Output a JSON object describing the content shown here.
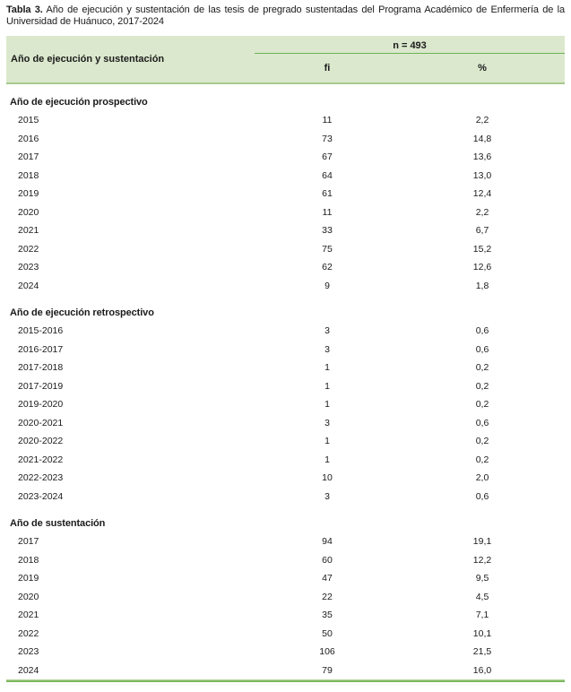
{
  "caption": {
    "label": "Tabla 3.",
    "text": " Año de ejecución y sustentación de las tesis de pregrado sustentadas del Programa Académico de Enfermería de la Universidad de Huánuco, 2017-2024"
  },
  "table": {
    "header": {
      "row_dimension": "Año de ejecución y sustentación",
      "n_label": "n = 493",
      "fi_label": "fi",
      "pct_label": "%"
    },
    "sections": [
      {
        "name": "Año de ejecución prospectivo",
        "rows": [
          [
            "2015",
            "11",
            "2,2"
          ],
          [
            "2016",
            "73",
            "14,8"
          ],
          [
            "2017",
            "67",
            "13,6"
          ],
          [
            "2018",
            "64",
            "13,0"
          ],
          [
            "2019",
            "61",
            "12,4"
          ],
          [
            "2020",
            "11",
            "2,2"
          ],
          [
            "2021",
            "33",
            "6,7"
          ],
          [
            "2022",
            "75",
            "15,2"
          ],
          [
            "2023",
            "62",
            "12,6"
          ],
          [
            "2024",
            "9",
            "1,8"
          ]
        ]
      },
      {
        "name": "Año de ejecución retrospectivo",
        "rows": [
          [
            "2015-2016",
            "3",
            "0,6"
          ],
          [
            "2016-2017",
            "3",
            "0,6"
          ],
          [
            "2017-2018",
            "1",
            "0,2"
          ],
          [
            "2017-2019",
            "1",
            "0,2"
          ],
          [
            "2019-2020",
            "1",
            "0,2"
          ],
          [
            "2020-2021",
            "3",
            "0,6"
          ],
          [
            "2020-2022",
            "1",
            "0,2"
          ],
          [
            "2021-2022",
            "1",
            "0,2"
          ],
          [
            "2022-2023",
            "10",
            "2,0"
          ],
          [
            "2023-2024",
            "3",
            "0,6"
          ]
        ]
      },
      {
        "name": "Año de sustentación",
        "rows": [
          [
            "2017",
            "94",
            "19,1"
          ],
          [
            "2018",
            "60",
            "12,2"
          ],
          [
            "2019",
            "47",
            "9,5"
          ],
          [
            "2020",
            "22",
            "4,5"
          ],
          [
            "2021",
            "35",
            "7,1"
          ],
          [
            "2022",
            "50",
            "10,1"
          ],
          [
            "2023",
            "106",
            "21,5"
          ],
          [
            "2024",
            "79",
            "16,0"
          ]
        ]
      }
    ]
  },
  "colors": {
    "header_bg": "#dbe8cd",
    "rule_green": "#6cb356",
    "header_border": "#a6ca8c",
    "text": "#1b1b1b"
  }
}
